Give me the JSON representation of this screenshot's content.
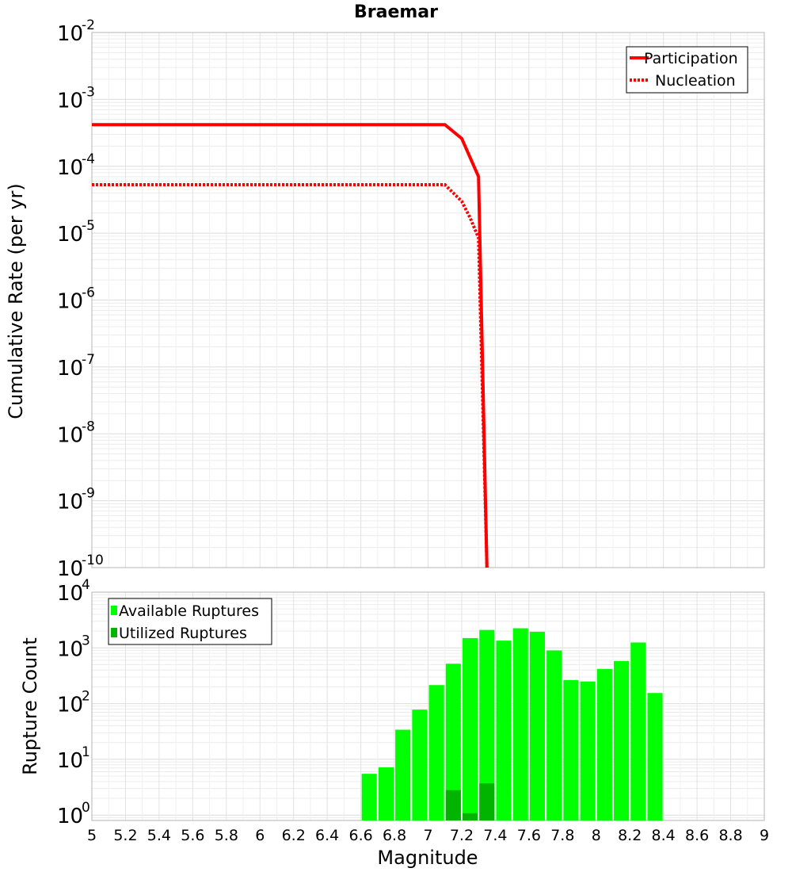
{
  "title": "Braemar",
  "xlabel": "Magnitude",
  "chart_data": [
    {
      "type": "line",
      "ylabel": "Cumulative Rate (per yr)",
      "yscale": "log",
      "ylim": [
        1e-10,
        0.01
      ],
      "xlim": [
        5,
        9
      ],
      "ytick_base": "10",
      "ytick_exponents": [
        "-2",
        "-3",
        "-4",
        "-5",
        "-6",
        "-7",
        "-8",
        "-9",
        "-10"
      ],
      "grid": true,
      "legend_position": "top-right",
      "series": [
        {
          "name": "Participation",
          "style": "solid",
          "color": "#ff0000",
          "x": [
            5.0,
            7.1,
            7.2,
            7.3,
            7.35
          ],
          "y": [
            0.00042,
            0.00042,
            0.00026,
            7e-05,
            1e-10
          ]
        },
        {
          "name": "Nucleation",
          "style": "dotted",
          "color": "#ff0000",
          "x": [
            5.0,
            7.1,
            7.2,
            7.25,
            7.3,
            7.35
          ],
          "y": [
            5.3e-05,
            5.3e-05,
            3e-05,
            1.7e-05,
            8.5e-06,
            1e-10
          ]
        }
      ]
    },
    {
      "type": "bar",
      "ylabel": "Rupture Count",
      "yscale": "log",
      "ylim": [
        0.8,
        10000
      ],
      "xlim": [
        5,
        9
      ],
      "ytick_base": "10",
      "ytick_exponents": [
        "4",
        "3",
        "2",
        "1",
        "0"
      ],
      "grid": true,
      "legend_position": "top-left",
      "series": [
        {
          "name": "Available Ruptures",
          "color": "#00ff00",
          "x": [
            6.65,
            6.75,
            6.85,
            6.95,
            7.05,
            7.15,
            7.25,
            7.35,
            7.45,
            7.55,
            7.65,
            7.75,
            7.85,
            7.95,
            8.05,
            8.15,
            8.25,
            8.35
          ],
          "values": [
            5.5,
            7.2,
            34,
            78,
            215,
            520,
            1500,
            2100,
            1350,
            2250,
            1950,
            900,
            265,
            250,
            420,
            580,
            1250,
            155
          ]
        },
        {
          "name": "Utilized Ruptures",
          "color": "#00b400",
          "x": [
            7.15,
            7.25,
            7.35
          ],
          "values": [
            2.8,
            1.08,
            3.7
          ]
        }
      ]
    }
  ],
  "xticks": [
    "5",
    "5.2",
    "5.4",
    "5.6",
    "5.8",
    "6",
    "6.2",
    "6.4",
    "6.6",
    "6.8",
    "7",
    "7.2",
    "7.4",
    "7.6",
    "7.8",
    "8",
    "8.2",
    "8.4",
    "8.6",
    "8.8",
    "9"
  ]
}
